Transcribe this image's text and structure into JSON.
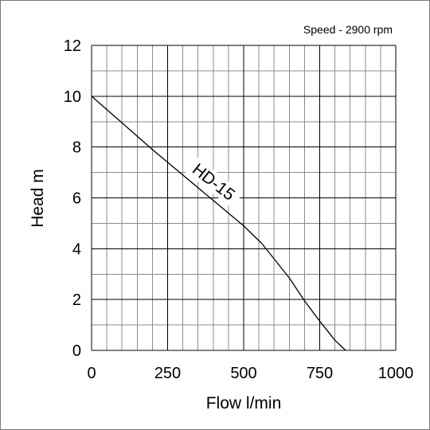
{
  "chart_data": {
    "type": "line",
    "annotation": "Speed - 2900 rpm",
    "xlabel": "Flow l/min",
    "ylabel": "Head m",
    "xlim": [
      0,
      1000
    ],
    "ylim": [
      0,
      12
    ],
    "x_ticks": [
      "0",
      "250",
      "500",
      "750",
      "1000"
    ],
    "y_ticks": [
      "0",
      "2",
      "4",
      "6",
      "8",
      "10",
      "12"
    ],
    "x_major_step": 250,
    "x_minor_step": 50,
    "y_major_step": 2,
    "y_minor_step": 1,
    "grid": true,
    "colors": {
      "curve": "#000000",
      "grid_major": "#000000",
      "grid_minor": "#8c8c8c"
    },
    "series": [
      {
        "name": "HD-15",
        "x": [
          0,
          100,
          200,
          300,
          400,
          500,
          560,
          600,
          650,
          700,
          750,
          800,
          835
        ],
        "y": [
          10.0,
          8.95,
          7.9,
          6.9,
          5.9,
          4.9,
          4.2,
          3.6,
          2.85,
          1.95,
          1.15,
          0.4,
          0.0
        ]
      }
    ]
  }
}
